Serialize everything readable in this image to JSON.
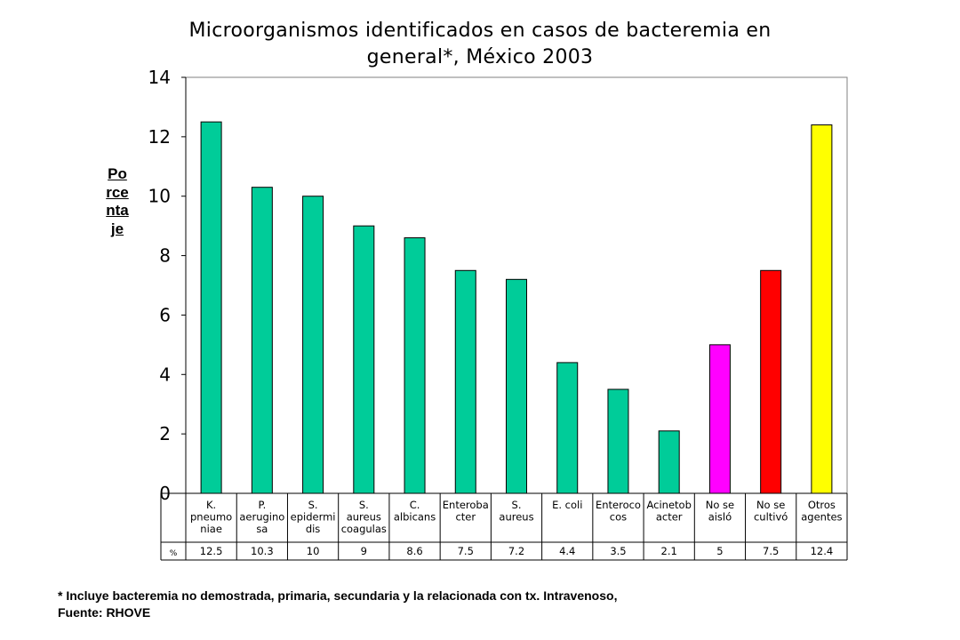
{
  "chart_data": {
    "type": "bar",
    "title_line1": "Microorganismos identificados en casos de bacteremia en",
    "title_line2": "general*, México 2003",
    "ylabel": "Porcentaje",
    "ylim": [
      0,
      14
    ],
    "yticks": [
      "0",
      "2",
      "4",
      "6",
      "8",
      "10",
      "12",
      "14"
    ],
    "grid": false,
    "categories": [
      [
        "K.",
        "pneumo",
        "niae"
      ],
      [
        "P.",
        "aerugino",
        "sa"
      ],
      [
        "S.",
        "epidermi",
        "dis"
      ],
      [
        "S.",
        "aureus",
        "coagulas"
      ],
      [
        "C.",
        "albicans"
      ],
      [
        "Enteroba",
        "cter"
      ],
      [
        "S.",
        "aureus"
      ],
      [
        "E. coli"
      ],
      [
        "Enteroco",
        "cos"
      ],
      [
        "Acinetob",
        "acter"
      ],
      [
        "No se",
        "aisló"
      ],
      [
        "No se",
        "cultivó"
      ],
      [
        "Otros",
        "agentes"
      ]
    ],
    "values": [
      12.5,
      10.3,
      10,
      9,
      8.6,
      7.5,
      7.2,
      4.4,
      3.5,
      2.1,
      5,
      7.5,
      12.4
    ],
    "value_labels": [
      "12.5",
      "10.3",
      "10",
      "9",
      "8.6",
      "7.5",
      "7.2",
      "4.4",
      "3.5",
      "2.1",
      "5",
      "7.5",
      "12.4"
    ],
    "table_row_label": "%",
    "bar_colors": [
      "#00cc99",
      "#00cc99",
      "#00cc99",
      "#00cc99",
      "#00cc99",
      "#00cc99",
      "#00cc99",
      "#00cc99",
      "#00cc99",
      "#00cc99",
      "#ff00ff",
      "#ff0000",
      "#ffff00"
    ]
  },
  "footnote": {
    "line1": "*  Incluye bacteremia no demostrada, primaria, secundaria y la relacionada con tx. Intravenoso,",
    "line2": "Fuente: RHOVE"
  }
}
